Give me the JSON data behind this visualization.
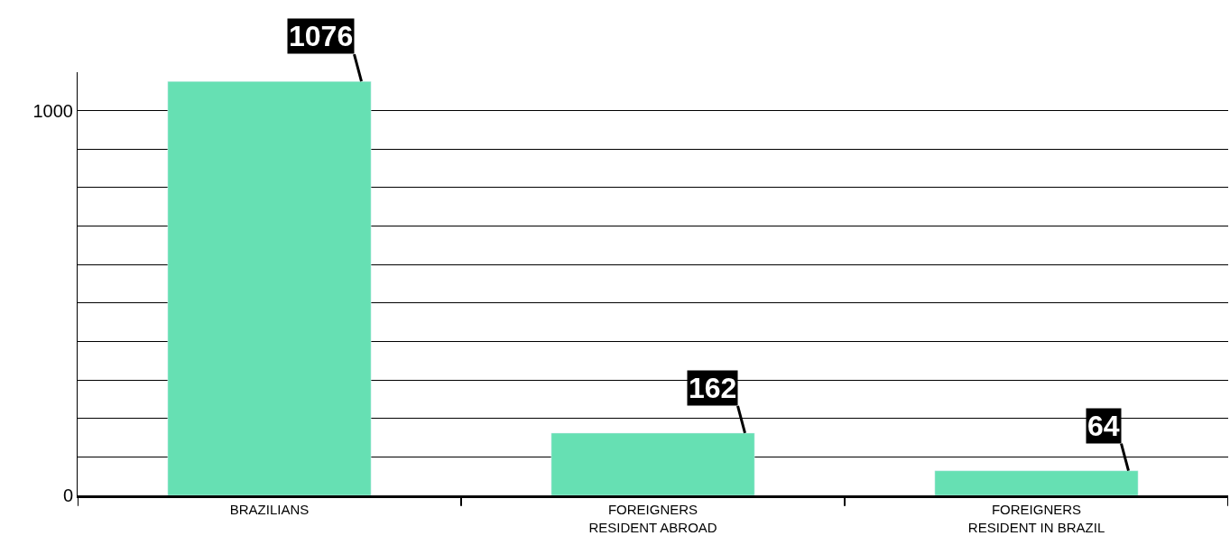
{
  "chart_data": {
    "type": "bar",
    "categories": [
      "BRAZILIANS",
      "FOREIGNERS\nRESIDENT ABROAD",
      "FOREIGNERS\nRESIDENT IN BRAZIL"
    ],
    "values": [
      1076,
      162,
      64
    ],
    "color": "#66e0b3",
    "data_labels": true,
    "ylim": [
      0,
      1100
    ],
    "yticks": [
      0,
      {
        "value": 100,
        "label": null
      },
      {
        "value": 200,
        "label": null
      },
      {
        "value": 300,
        "label": null
      },
      {
        "value": 400,
        "label": null
      },
      {
        "value": 500,
        "label": null
      },
      {
        "value": 600,
        "label": null
      },
      {
        "value": 700,
        "label": null
      },
      {
        "value": 800,
        "label": null
      },
      {
        "value": 900,
        "label": null
      },
      1000
    ],
    "grid": "y",
    "legend": false
  }
}
